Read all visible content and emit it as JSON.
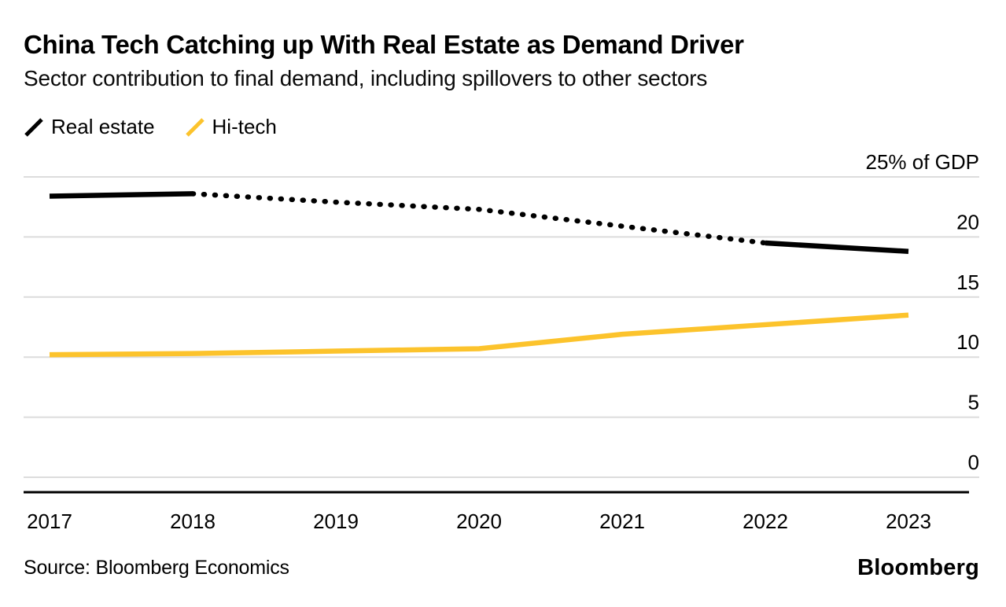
{
  "header": {
    "title": "China Tech Catching up With Real Estate as Demand Driver",
    "subtitle": "Sector contribution to final demand, including spillovers to other sectors"
  },
  "legend": {
    "items": [
      {
        "label": "Real estate",
        "color": "#000000"
      },
      {
        "label": "Hi-tech",
        "color": "#FCC32C"
      }
    ]
  },
  "footer": {
    "source": "Source: Bloomberg Economics",
    "logo": "Bloomberg"
  },
  "chart_data": {
    "type": "line",
    "title": "China Tech Catching up With Real Estate as Demand Driver",
    "subtitle": "Sector contribution to final demand, including spillovers to other sectors",
    "unit": "% of GDP",
    "x": [
      2017,
      2018,
      2019,
      2020,
      2021,
      2022,
      2023
    ],
    "x_labels": [
      "2017",
      "2018",
      "2019",
      "2020",
      "2021",
      "2022",
      "2023"
    ],
    "y_axis": {
      "min": 0,
      "max": 25,
      "tick_step": 5,
      "tick_labels": [
        "0",
        "5",
        "10",
        "15",
        "20",
        "25% of GDP"
      ],
      "side": "right",
      "grid": true
    },
    "series": [
      {
        "name": "Real estate",
        "color": "#000000",
        "values": [
          23.4,
          23.6,
          22.9,
          22.3,
          20.9,
          19.5,
          18.8
        ],
        "dashed_between": [
          2018,
          2022
        ]
      },
      {
        "name": "Hi-tech",
        "color": "#FCC32C",
        "values": [
          10.2,
          10.3,
          10.5,
          10.7,
          11.9,
          12.7,
          13.5
        ],
        "dashed_between": null
      }
    ],
    "legend_position": "top-left",
    "colors": {
      "grid": "#DCDCDC",
      "axis": "#000000"
    }
  }
}
